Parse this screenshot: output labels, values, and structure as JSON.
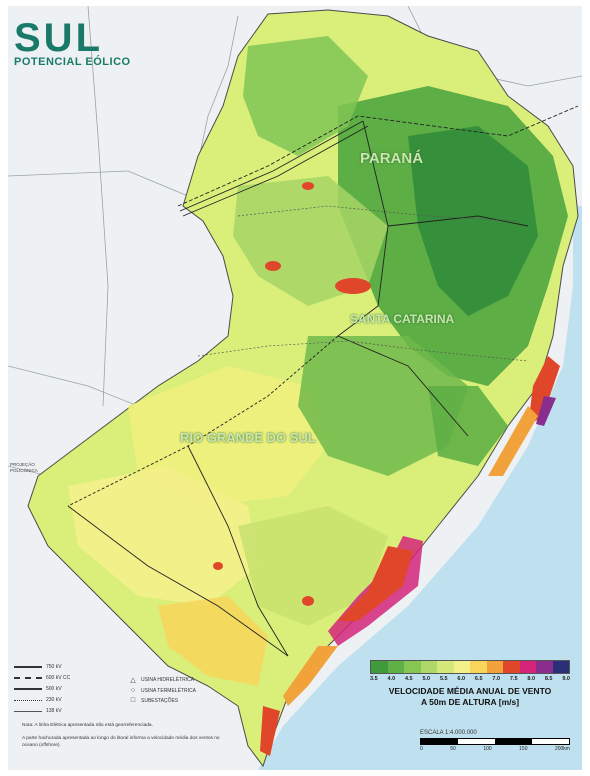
{
  "title": "SUL",
  "subtitle": "POTENCIAL EÓLICO",
  "region_labels": {
    "parana": "PARANÁ",
    "santa_catarina": "SANTA CATARINA",
    "rio_grande_do_sul": "RIO GRANDE DO SUL"
  },
  "legend": {
    "ticks": [
      "3.5",
      "4.0",
      "4.5",
      "5.0",
      "5.5",
      "6.0",
      "6.5",
      "7.0",
      "7.5",
      "8.0",
      "8.5",
      "9.0"
    ],
    "colors": [
      "#3f9a3c",
      "#5fb046",
      "#86c653",
      "#aed86a",
      "#d4e97a",
      "#f4f08a",
      "#f7d65a",
      "#f2a23a",
      "#e0472a",
      "#d4257a",
      "#8b2d8e",
      "#2b2f7a"
    ],
    "title_line1": "VELOCIDADE MÉDIA ANUAL DE VENTO",
    "title_line2": "A 50m DE ALTURA",
    "unit": "[m/s]"
  },
  "scale": {
    "label": "ESCALA 1:4.000.000",
    "ticks": [
      "0",
      "50",
      "100",
      "150",
      "200km"
    ]
  },
  "line_legend": [
    "750 kV",
    "600 kV CC",
    "500 kV",
    "230 kV",
    "138 kV"
  ],
  "symbol_legend": [
    {
      "glyph": "△",
      "label": "USINA HIDRELÉTRICA"
    },
    {
      "glyph": "○",
      "label": "USINA TERMELÉTRICA"
    },
    {
      "glyph": "□",
      "label": "SUBESTAÇÕES"
    }
  ],
  "notes": [
    "Nota: A linha Elétrica apresentada não está georreferenciada.",
    "A parte hachurada apresentada ao longo do litoral informa a velocidade média dos ventos no oceano (offshore)."
  ],
  "side_note": "PROJEÇÃO POLICÔNICA",
  "colors": {
    "ocean": "#bfe0ef",
    "land_base": "#d9ef7a",
    "brand": "#1a7a6a"
  }
}
